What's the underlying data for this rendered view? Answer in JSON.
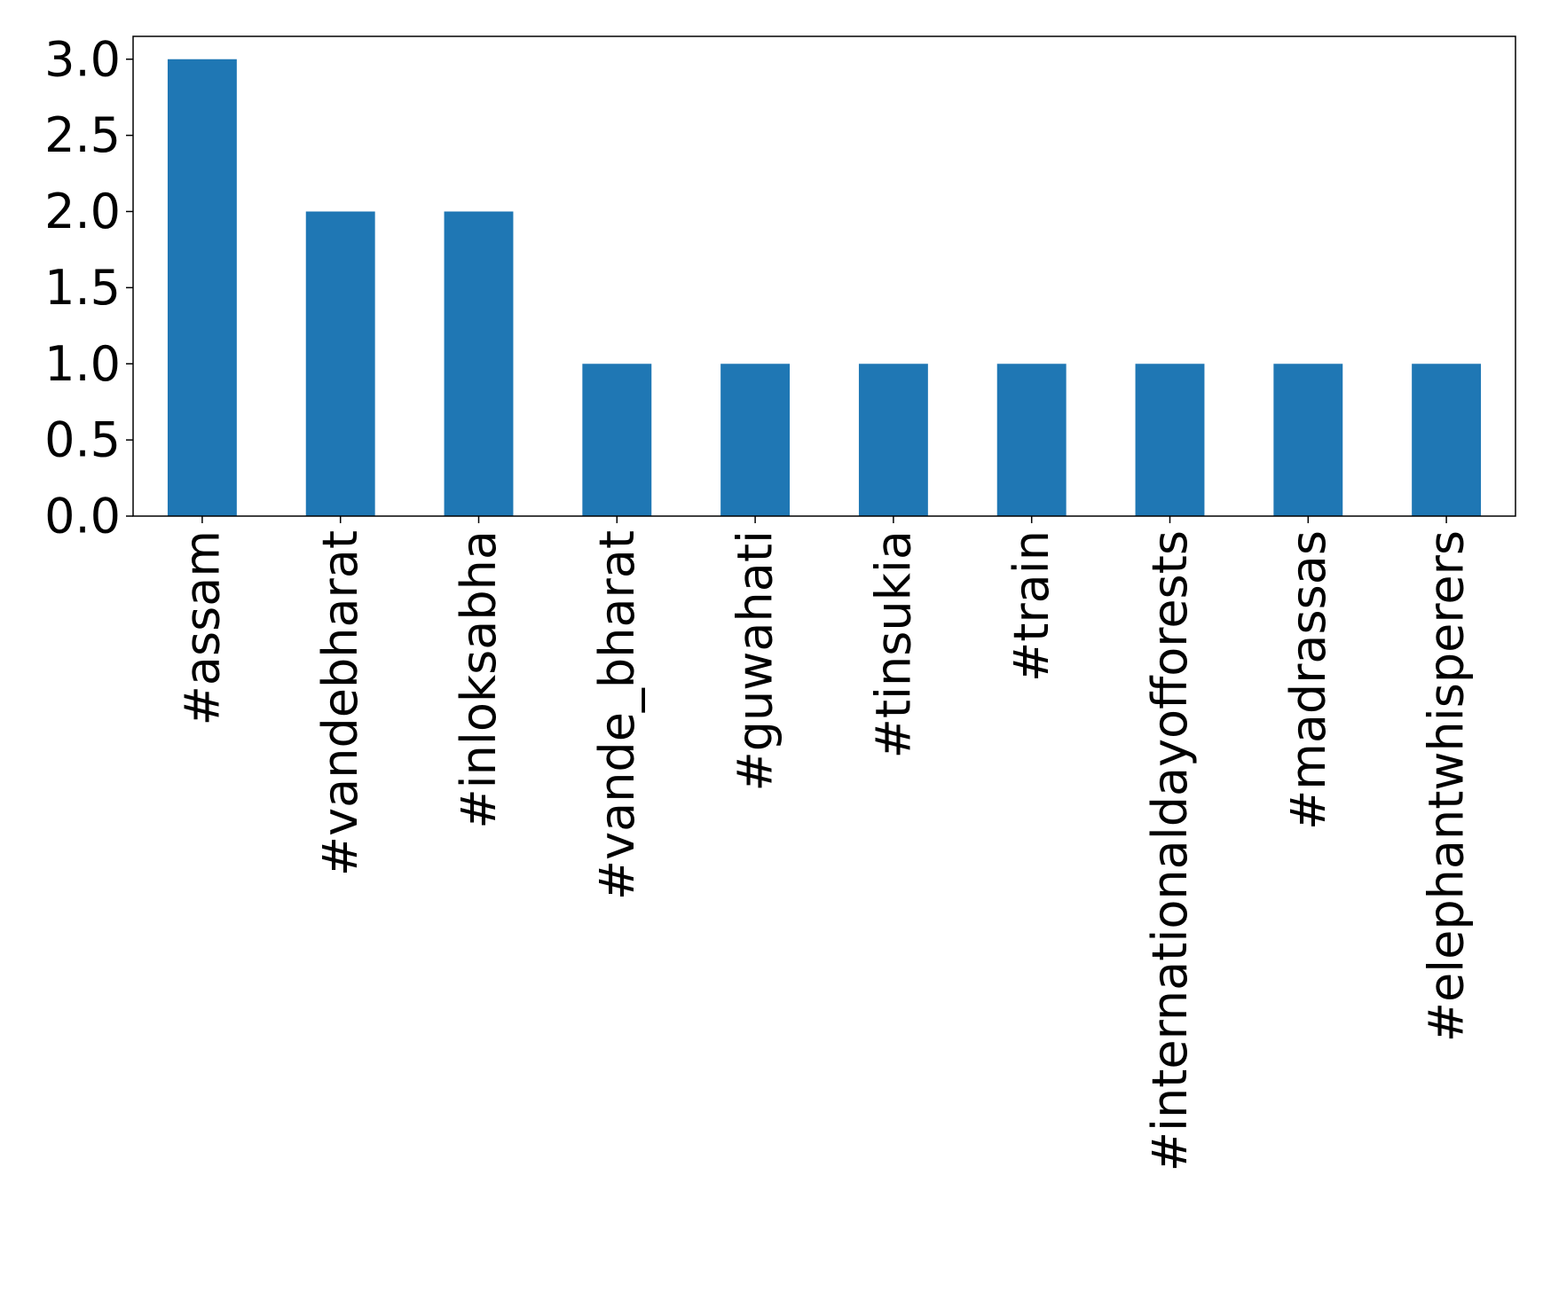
{
  "chart_data": {
    "type": "bar",
    "categories": [
      "#assam",
      "#vandebharat",
      "#inloksabha",
      "#vande_bharat",
      "#guwahati",
      "#tinsukia",
      "#train",
      "#internationaldayofforests",
      "#madrassas",
      "#elephantwhisperers"
    ],
    "values": [
      3,
      2,
      2,
      1,
      1,
      1,
      1,
      1,
      1,
      1
    ],
    "color": "#1f77b4",
    "ylim": [
      0,
      3.15
    ],
    "yticks": [
      {
        "value": 0,
        "label": "0.0"
      },
      {
        "value": 0.5,
        "label": "0.5"
      },
      {
        "value": 1,
        "label": "1.0"
      },
      {
        "value": 1.5,
        "label": "1.5"
      },
      {
        "value": 2,
        "label": "2.0"
      },
      {
        "value": 2.5,
        "label": "2.5"
      },
      {
        "value": 3,
        "label": "3.0"
      }
    ]
  }
}
